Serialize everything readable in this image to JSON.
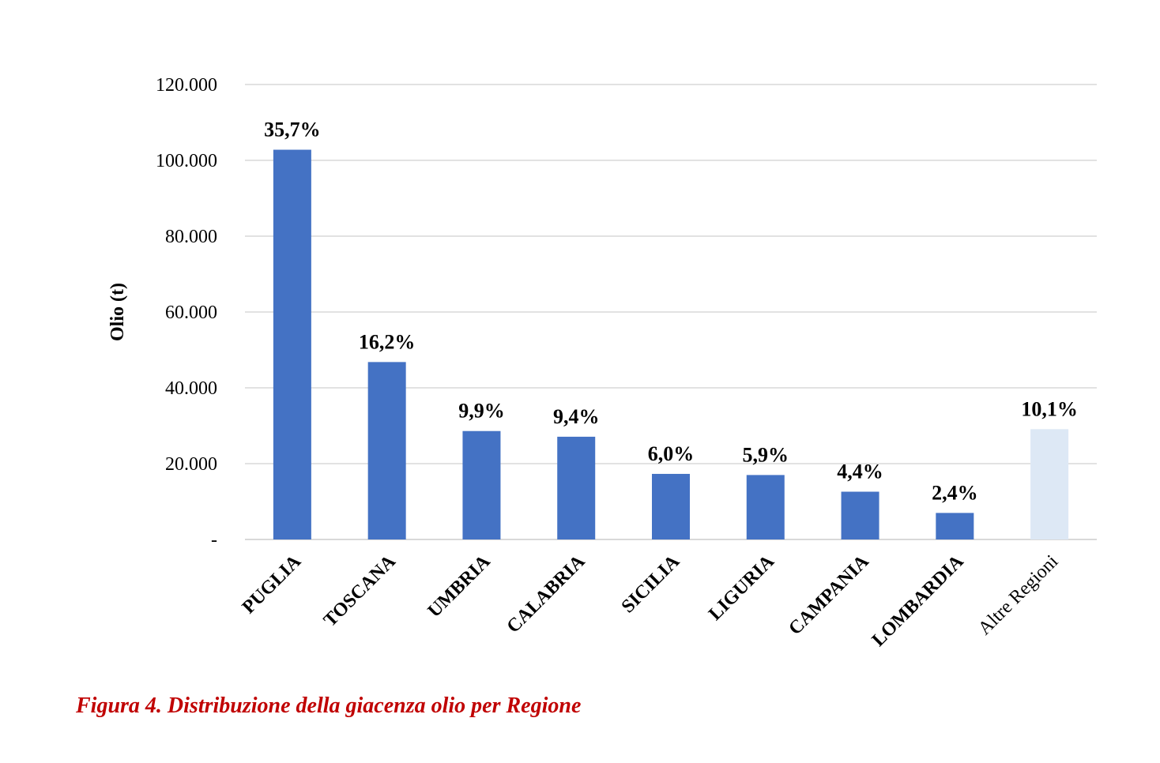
{
  "chart_data": {
    "type": "bar",
    "ylabel": "Olio (t)",
    "ylim": [
      0,
      120000
    ],
    "yticks": [
      0,
      20000,
      40000,
      60000,
      80000,
      100000,
      120000
    ],
    "ytick_labels": [
      "-",
      "20.000",
      "40.000",
      "60.000",
      "80.000",
      "100.000",
      "120.000"
    ],
    "grid": true,
    "legend": "none",
    "categories": [
      "PUGLIA",
      "TOSCANA",
      "UMBRIA",
      "CALABRIA",
      "SICILIA",
      "LIGURIA",
      "CAMPANIA",
      "LOMBARDIA",
      "Altre Regioni"
    ],
    "values": [
      102800,
      46800,
      28600,
      27100,
      17300,
      17000,
      12600,
      7000,
      29100
    ],
    "data_labels": [
      "35,7%",
      "16,2%",
      "9,9%",
      "9,4%",
      "6,0%",
      "5,9%",
      "4,4%",
      "2,4%",
      "10,1%"
    ],
    "colors": {
      "primary": "#4472c4",
      "other": "#dde8f5",
      "grid": "#d9d9d9"
    }
  },
  "caption": "Figura 4. Distribuzione della giacenza olio per Regione"
}
